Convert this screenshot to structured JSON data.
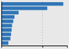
{
  "chart_data": {
    "type": "bar",
    "orientation": "horizontal",
    "categories": [
      null,
      null,
      null,
      null,
      null,
      null,
      null,
      null,
      null,
      null
    ],
    "values": [
      755,
      560,
      210,
      160,
      145,
      130,
      125,
      118,
      110,
      85
    ],
    "color": "#2e75b6",
    "xlim": [
      0,
      800
    ],
    "xticks": [
      500
    ],
    "grid": true,
    "tick_labels": false
  }
}
